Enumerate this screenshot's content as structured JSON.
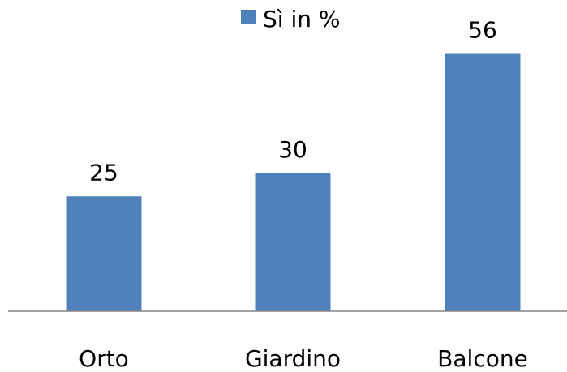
{
  "chart_data": {
    "type": "bar",
    "categories": [
      "Orto",
      "Giardino",
      "Balcone"
    ],
    "series": [
      {
        "name": "Sì in %",
        "values": [
          25,
          30,
          56
        ],
        "color": "#4f81bd"
      }
    ],
    "data_labels": [
      "25",
      "30",
      "56"
    ],
    "ylim": [
      0,
      60
    ],
    "grid": false,
    "legend_position": "top",
    "axis_color": "#868686"
  }
}
